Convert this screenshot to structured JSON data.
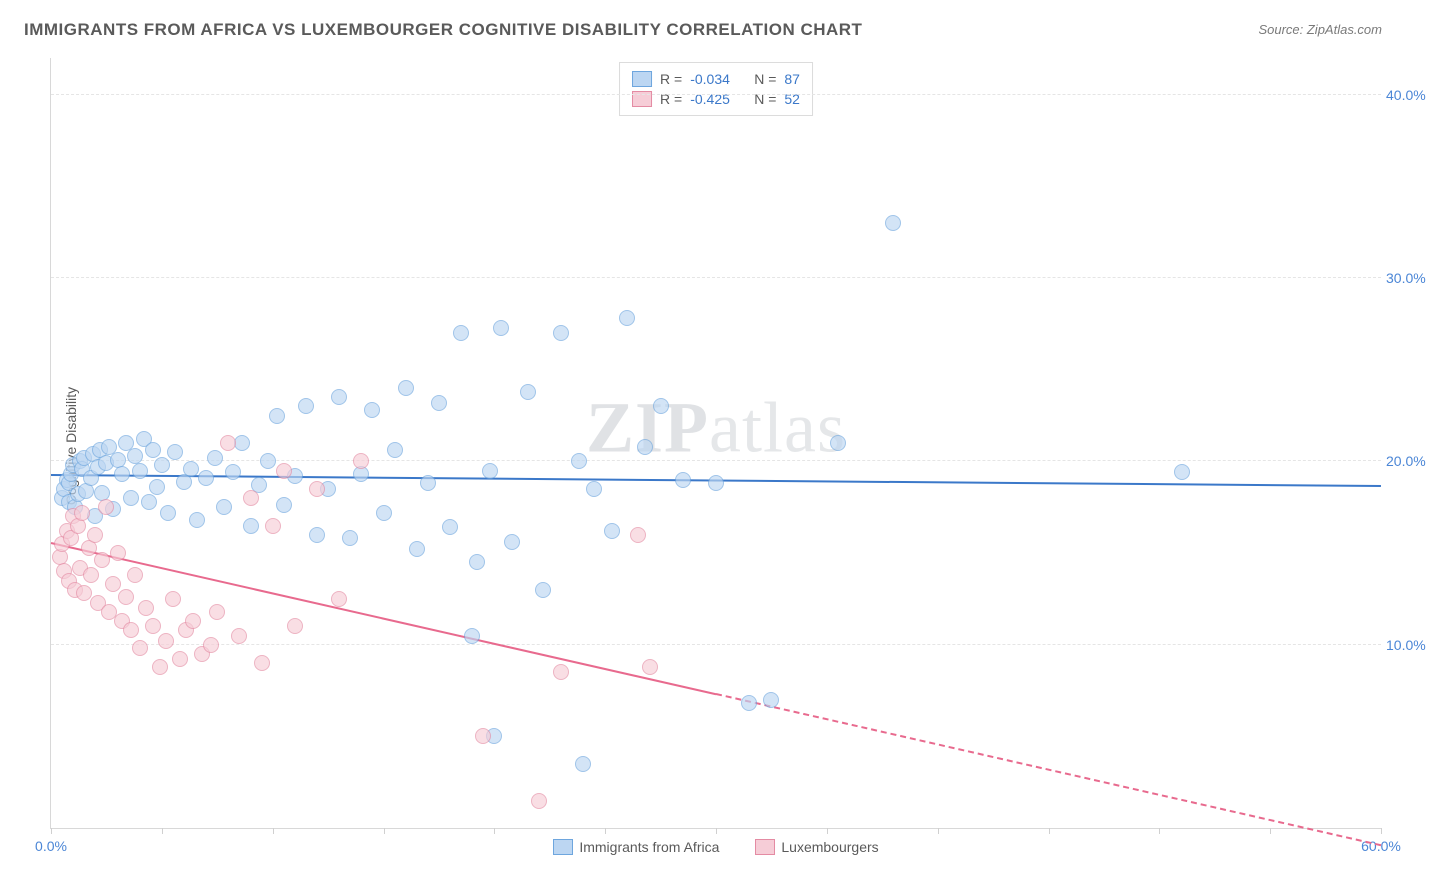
{
  "title": "IMMIGRANTS FROM AFRICA VS LUXEMBOURGER COGNITIVE DISABILITY CORRELATION CHART",
  "source_prefix": "Source: ",
  "source": "ZipAtlas.com",
  "ylabel": "Cognitive Disability",
  "watermark_a": "ZIP",
  "watermark_b": "atlas",
  "chart": {
    "type": "scatter",
    "background_color": "#ffffff",
    "grid_color": "#e5e5e5",
    "axis_color": "#d8d8d8",
    "label_fontsize": 14,
    "title_fontsize": 17,
    "xlim": [
      0,
      60
    ],
    "ylim": [
      0,
      42
    ],
    "xtick_step": 5,
    "xtick_labels": [
      {
        "x": 0,
        "label": "0.0%"
      },
      {
        "x": 60,
        "label": "60.0%"
      }
    ],
    "ytick_labels": [
      {
        "y": 10,
        "label": "10.0%"
      },
      {
        "y": 20,
        "label": "20.0%"
      },
      {
        "y": 30,
        "label": "30.0%"
      },
      {
        "y": 40,
        "label": "40.0%"
      }
    ],
    "marker_radius": 8,
    "marker_stroke_width": 1.2,
    "trend_width": 2,
    "series": [
      {
        "name": "Immigrants from Africa",
        "fill": "#bcd6f2",
        "stroke": "#6ea6de",
        "fill_opacity": 0.65,
        "R": "-0.034",
        "N": "87",
        "trend": {
          "x1": 0,
          "y1": 19.2,
          "x2": 60,
          "y2": 18.6,
          "solid_until_x": 60,
          "color": "#3b78c9"
        },
        "points": [
          [
            0.5,
            18.0
          ],
          [
            0.6,
            18.5
          ],
          [
            0.7,
            19.0
          ],
          [
            0.8,
            17.8
          ],
          [
            0.8,
            18.8
          ],
          [
            0.9,
            19.3
          ],
          [
            1.0,
            19.8
          ],
          [
            1.1,
            17.5
          ],
          [
            1.2,
            18.2
          ],
          [
            1.3,
            20.0
          ],
          [
            1.4,
            19.6
          ],
          [
            1.5,
            20.2
          ],
          [
            1.6,
            18.4
          ],
          [
            1.8,
            19.1
          ],
          [
            1.9,
            20.4
          ],
          [
            2.0,
            17.0
          ],
          [
            2.1,
            19.7
          ],
          [
            2.2,
            20.6
          ],
          [
            2.3,
            18.3
          ],
          [
            2.5,
            19.9
          ],
          [
            2.6,
            20.8
          ],
          [
            2.8,
            17.4
          ],
          [
            3.0,
            20.1
          ],
          [
            3.2,
            19.3
          ],
          [
            3.4,
            21.0
          ],
          [
            3.6,
            18.0
          ],
          [
            3.8,
            20.3
          ],
          [
            4.0,
            19.5
          ],
          [
            4.2,
            21.2
          ],
          [
            4.4,
            17.8
          ],
          [
            4.6,
            20.6
          ],
          [
            4.8,
            18.6
          ],
          [
            5.0,
            19.8
          ],
          [
            5.3,
            17.2
          ],
          [
            5.6,
            20.5
          ],
          [
            6.0,
            18.9
          ],
          [
            6.3,
            19.6
          ],
          [
            6.6,
            16.8
          ],
          [
            7.0,
            19.1
          ],
          [
            7.4,
            20.2
          ],
          [
            7.8,
            17.5
          ],
          [
            8.2,
            19.4
          ],
          [
            8.6,
            21.0
          ],
          [
            9.0,
            16.5
          ],
          [
            9.4,
            18.7
          ],
          [
            9.8,
            20.0
          ],
          [
            10.2,
            22.5
          ],
          [
            10.5,
            17.6
          ],
          [
            11.0,
            19.2
          ],
          [
            11.5,
            23.0
          ],
          [
            12.0,
            16.0
          ],
          [
            12.5,
            18.5
          ],
          [
            13.0,
            23.5
          ],
          [
            13.5,
            15.8
          ],
          [
            14.0,
            19.3
          ],
          [
            14.5,
            22.8
          ],
          [
            15.0,
            17.2
          ],
          [
            15.5,
            20.6
          ],
          [
            16.0,
            24.0
          ],
          [
            16.5,
            15.2
          ],
          [
            17.0,
            18.8
          ],
          [
            17.5,
            23.2
          ],
          [
            18.0,
            16.4
          ],
          [
            18.5,
            27.0
          ],
          [
            19.2,
            14.5
          ],
          [
            19.8,
            19.5
          ],
          [
            20.3,
            27.3
          ],
          [
            20.8,
            15.6
          ],
          [
            21.5,
            23.8
          ],
          [
            22.2,
            13.0
          ],
          [
            23.0,
            27.0
          ],
          [
            23.8,
            20.0
          ],
          [
            24.5,
            18.5
          ],
          [
            25.3,
            16.2
          ],
          [
            26.0,
            27.8
          ],
          [
            26.8,
            20.8
          ],
          [
            27.5,
            23.0
          ],
          [
            28.5,
            19.0
          ],
          [
            19.0,
            10.5
          ],
          [
            20.0,
            5.0
          ],
          [
            24.0,
            3.5
          ],
          [
            30.0,
            18.8
          ],
          [
            31.5,
            6.8
          ],
          [
            32.5,
            7.0
          ],
          [
            35.5,
            21.0
          ],
          [
            38.0,
            33.0
          ],
          [
            51.0,
            19.4
          ]
        ]
      },
      {
        "name": "Luxembourgers",
        "fill": "#f6cdd7",
        "stroke": "#e48ba3",
        "fill_opacity": 0.65,
        "R": "-0.425",
        "N": "52",
        "trend": {
          "x1": 0,
          "y1": 15.5,
          "x2": 60,
          "y2": -1.0,
          "solid_until_x": 30,
          "color": "#e86a8e"
        },
        "points": [
          [
            0.4,
            14.8
          ],
          [
            0.5,
            15.5
          ],
          [
            0.6,
            14.0
          ],
          [
            0.7,
            16.2
          ],
          [
            0.8,
            13.5
          ],
          [
            0.9,
            15.8
          ],
          [
            1.0,
            17.0
          ],
          [
            1.1,
            13.0
          ],
          [
            1.2,
            16.5
          ],
          [
            1.3,
            14.2
          ],
          [
            1.4,
            17.2
          ],
          [
            1.5,
            12.8
          ],
          [
            1.7,
            15.3
          ],
          [
            1.8,
            13.8
          ],
          [
            2.0,
            16.0
          ],
          [
            2.1,
            12.3
          ],
          [
            2.3,
            14.6
          ],
          [
            2.5,
            17.5
          ],
          [
            2.6,
            11.8
          ],
          [
            2.8,
            13.3
          ],
          [
            3.0,
            15.0
          ],
          [
            3.2,
            11.3
          ],
          [
            3.4,
            12.6
          ],
          [
            3.6,
            10.8
          ],
          [
            3.8,
            13.8
          ],
          [
            4.0,
            9.8
          ],
          [
            4.3,
            12.0
          ],
          [
            4.6,
            11.0
          ],
          [
            4.9,
            8.8
          ],
          [
            5.2,
            10.2
          ],
          [
            5.5,
            12.5
          ],
          [
            5.8,
            9.2
          ],
          [
            6.1,
            10.8
          ],
          [
            6.4,
            11.3
          ],
          [
            6.8,
            9.5
          ],
          [
            7.2,
            10.0
          ],
          [
            7.5,
            11.8
          ],
          [
            8.0,
            21.0
          ],
          [
            8.5,
            10.5
          ],
          [
            9.0,
            18.0
          ],
          [
            9.5,
            9.0
          ],
          [
            10.0,
            16.5
          ],
          [
            10.5,
            19.5
          ],
          [
            11.0,
            11.0
          ],
          [
            12.0,
            18.5
          ],
          [
            13.0,
            12.5
          ],
          [
            14.0,
            20.0
          ],
          [
            19.5,
            5.0
          ],
          [
            22.0,
            1.5
          ],
          [
            23.0,
            8.5
          ],
          [
            26.5,
            16.0
          ],
          [
            27.0,
            8.8
          ]
        ]
      }
    ],
    "r_label": "R =",
    "n_label": "N =",
    "r_color": "#3b78c9",
    "n_color": "#3b78c9",
    "legend_text_color": "#5a5a5a"
  }
}
